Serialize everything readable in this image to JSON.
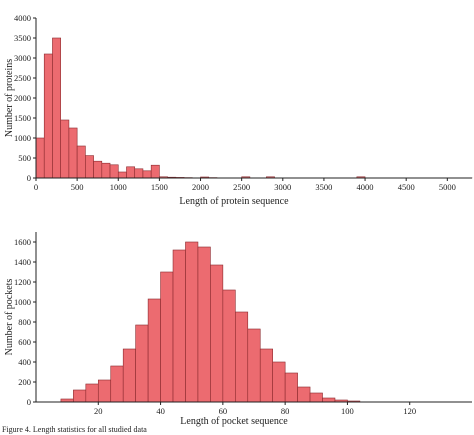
{
  "chart_data": [
    {
      "type": "bar",
      "title": "",
      "xlabel": "Length of protein sequence",
      "ylabel": "Number of proteins",
      "bin_width": 100,
      "bin_starts": [
        0,
        100,
        200,
        300,
        400,
        500,
        600,
        700,
        800,
        900,
        1000,
        1100,
        1200,
        1300,
        1400,
        1500,
        1600,
        1700,
        1800,
        1900,
        2000,
        2100,
        2200,
        2300,
        2400,
        2500,
        2600,
        2700,
        2800,
        2900,
        3000,
        3100,
        3200,
        3300,
        3400,
        3500,
        3600,
        3700,
        3800,
        3900,
        4000,
        4100,
        4200,
        4300,
        4400,
        4500,
        4600,
        4700,
        4800,
        4900,
        5000,
        5100,
        5200
      ],
      "values": [
        1000,
        3100,
        3500,
        1450,
        1250,
        800,
        560,
        420,
        370,
        330,
        150,
        280,
        230,
        180,
        320,
        30,
        20,
        15,
        10,
        5,
        25,
        10,
        5,
        5,
        5,
        30,
        5,
        5,
        30,
        5,
        5,
        5,
        5,
        5,
        5,
        5,
        5,
        5,
        5,
        30,
        5,
        5,
        5,
        5,
        5,
        5,
        5,
        5,
        5,
        5,
        5,
        5,
        5
      ],
      "xlim": [
        0,
        5300
      ],
      "ylim": [
        0,
        4000
      ],
      "xticks": [
        0,
        500,
        1000,
        1500,
        2000,
        2500,
        3000,
        3500,
        4000,
        4500,
        5000
      ],
      "yticks": [
        0,
        500,
        1000,
        1500,
        2000,
        2500,
        3000,
        3500,
        4000
      ],
      "bar_color": "#ec6b70",
      "edge_color": "#8b2a2e"
    },
    {
      "type": "bar",
      "title": "",
      "xlabel": "Length of pocket sequence",
      "ylabel": "Number of pockets",
      "bin_width": 4,
      "bin_starts": [
        8,
        12,
        16,
        20,
        24,
        28,
        32,
        36,
        40,
        44,
        48,
        52,
        56,
        60,
        64,
        68,
        72,
        76,
        80,
        84,
        88,
        92,
        96,
        100
      ],
      "values": [
        30,
        120,
        180,
        220,
        360,
        530,
        770,
        1030,
        1300,
        1520,
        1600,
        1550,
        1370,
        1120,
        900,
        730,
        530,
        400,
        290,
        150,
        90,
        40,
        20,
        10
      ],
      "xlim": [
        0,
        140
      ],
      "ylim": [
        0,
        1700
      ],
      "xticks": [
        20,
        40,
        60,
        80,
        100,
        120
      ],
      "yticks": [
        0,
        200,
        400,
        600,
        800,
        1000,
        1200,
        1400,
        1600
      ],
      "bar_color": "#ec6b70",
      "edge_color": "#8b2a2e"
    }
  ],
  "caption": "Figure 4. Length statistics for all studied data"
}
